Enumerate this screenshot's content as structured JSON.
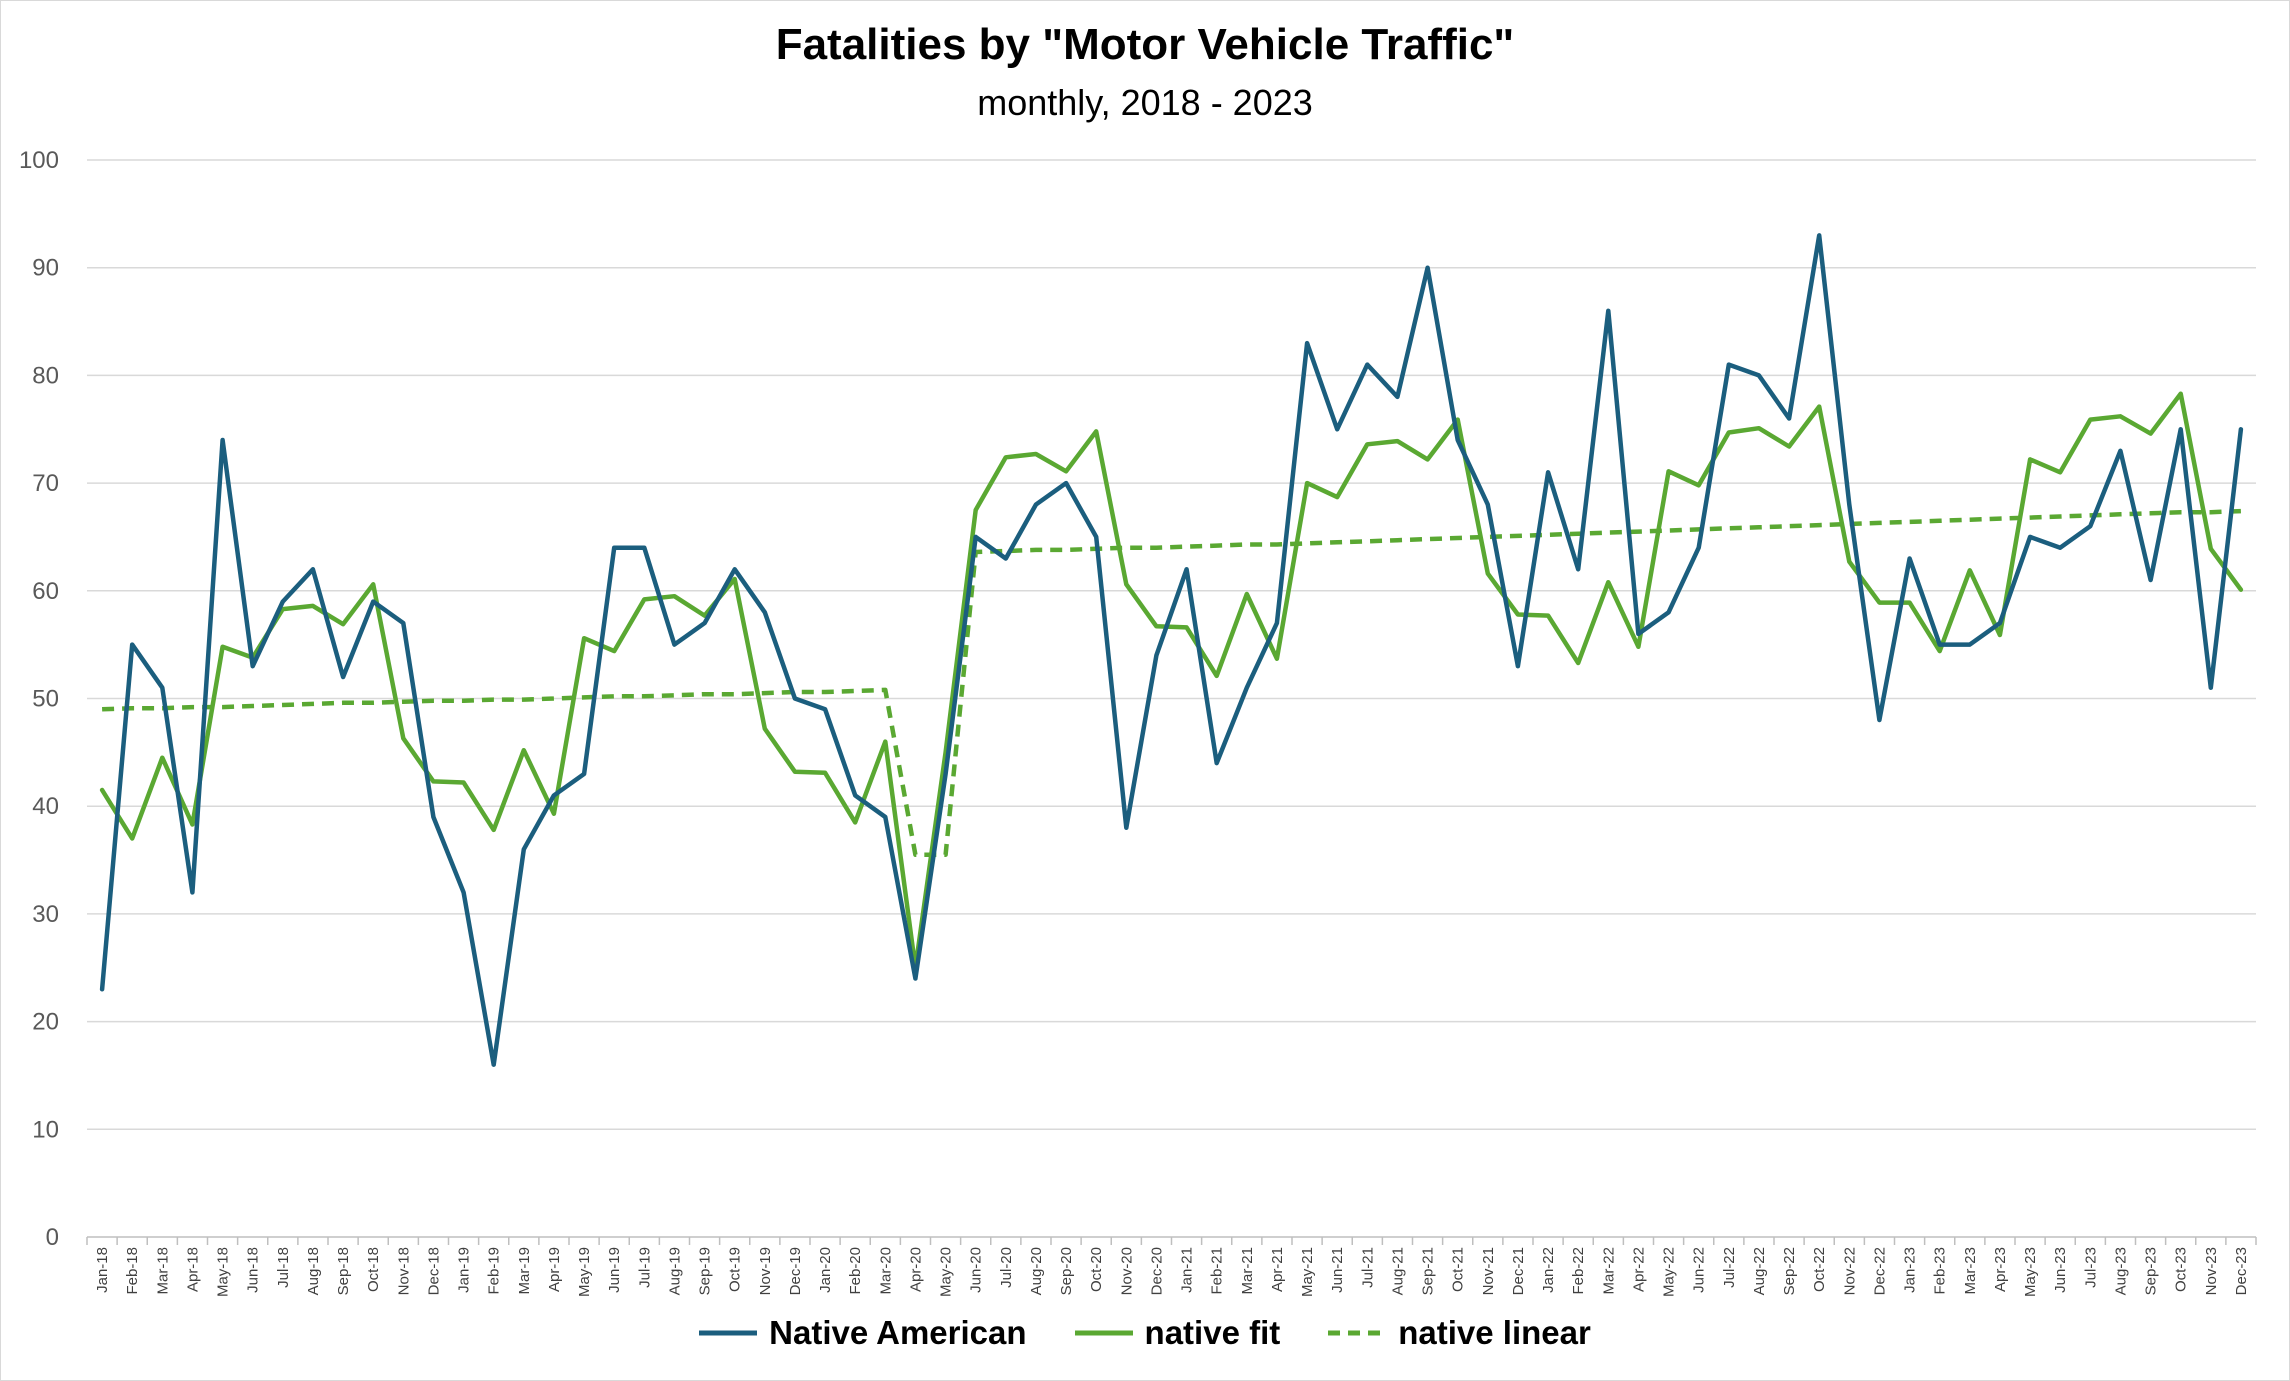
{
  "chart_data": {
    "type": "line",
    "title": "Fatalities by \"Motor Vehicle Traffic\"",
    "subtitle": "monthly, 2018 - 2023",
    "xlabel": "",
    "ylabel": "",
    "ylim": [
      0,
      100
    ],
    "yticks": [
      0,
      10,
      20,
      30,
      40,
      50,
      60,
      70,
      80,
      90,
      100
    ],
    "grid": true,
    "legend_position": "bottom",
    "categories": [
      "Jan-18",
      "Feb-18",
      "Mar-18",
      "Apr-18",
      "May-18",
      "Jun-18",
      "Jul-18",
      "Aug-18",
      "Sep-18",
      "Oct-18",
      "Nov-18",
      "Dec-18",
      "Jan-19",
      "Feb-19",
      "Mar-19",
      "Apr-19",
      "May-19",
      "Jun-19",
      "Jul-19",
      "Aug-19",
      "Sep-19",
      "Oct-19",
      "Nov-19",
      "Dec-19",
      "Jan-20",
      "Feb-20",
      "Mar-20",
      "Apr-20",
      "May-20",
      "Jun-20",
      "Jul-20",
      "Aug-20",
      "Sep-20",
      "Oct-20",
      "Nov-20",
      "Dec-20",
      "Jan-21",
      "Feb-21",
      "Mar-21",
      "Apr-21",
      "May-21",
      "Jun-21",
      "Jul-21",
      "Aug-21",
      "Sep-21",
      "Oct-21",
      "Nov-21",
      "Dec-21",
      "Jan-22",
      "Feb-22",
      "Mar-22",
      "Apr-22",
      "May-22",
      "Jun-22",
      "Jul-22",
      "Aug-22",
      "Sep-22",
      "Oct-22",
      "Nov-22",
      "Dec-22",
      "Jan-23",
      "Feb-23",
      "Mar-23",
      "Apr-23",
      "May-23",
      "Jun-23",
      "Jul-23",
      "Aug-23",
      "Sep-23",
      "Oct-23",
      "Nov-23",
      "Dec-23"
    ],
    "series": [
      {
        "name": "Native American",
        "color": "#1b5e7e",
        "dash": "solid",
        "values": [
          23,
          55,
          51,
          32,
          74,
          53,
          59,
          62,
          52,
          59,
          57,
          39,
          32,
          16,
          36,
          41,
          43,
          64,
          64,
          55,
          57,
          62,
          58,
          50,
          49,
          41,
          39,
          24,
          43,
          65,
          63,
          68,
          70,
          65,
          38,
          54,
          62,
          44,
          51,
          57,
          83,
          75,
          81,
          78,
          90,
          74,
          68,
          53,
          71,
          62,
          86,
          56,
          58,
          64,
          81,
          80,
          76,
          93,
          68,
          48,
          63,
          55,
          55,
          57,
          65,
          64,
          66,
          73,
          61,
          75,
          51,
          75
        ]
      },
      {
        "name": "native fit",
        "color": "#5aa832",
        "dash": "solid",
        "values": [
          41.5,
          37,
          44.5,
          38.3,
          54.8,
          53.8,
          58.3,
          58.6,
          56.9,
          60.6,
          46.3,
          42.3,
          42.2,
          37.8,
          45.2,
          39.3,
          55.6,
          54.4,
          59.2,
          59.5,
          57.7,
          61.1,
          47.2,
          43.2,
          43.1,
          38.5,
          46,
          25,
          45,
          67.5,
          72.4,
          72.7,
          71.1,
          74.8,
          60.6,
          56.7,
          56.6,
          52.1,
          59.7,
          53.7,
          70,
          68.7,
          73.6,
          73.9,
          72.2,
          75.9,
          61.6,
          57.8,
          57.7,
          53.3,
          60.8,
          54.8,
          71.1,
          69.8,
          74.7,
          75.1,
          73.4,
          77.1,
          62.7,
          58.9,
          58.9,
          54.4,
          61.9,
          55.9,
          72.2,
          71,
          75.9,
          76.2,
          74.6,
          78.3,
          63.9,
          60.1
        ]
      },
      {
        "name": "native linear",
        "color": "#5aa832",
        "dash": "dashed",
        "values": [
          49,
          49.1,
          49.1,
          49.2,
          49.2,
          49.3,
          49.4,
          49.5,
          49.6,
          49.6,
          49.7,
          49.8,
          49.8,
          49.9,
          49.9,
          50,
          50.1,
          50.2,
          50.2,
          50.3,
          50.4,
          50.4,
          50.5,
          50.6,
          50.6,
          50.7,
          50.8,
          35.5,
          35.5,
          63.6,
          63.7,
          63.8,
          63.8,
          63.9,
          64,
          64,
          64.1,
          64.2,
          64.3,
          64.3,
          64.4,
          64.5,
          64.6,
          64.7,
          64.8,
          64.9,
          65,
          65.1,
          65.2,
          65.3,
          65.4,
          65.5,
          65.6,
          65.7,
          65.8,
          65.9,
          66,
          66.1,
          66.2,
          66.3,
          66.4,
          66.5,
          66.6,
          66.7,
          66.8,
          66.9,
          67,
          67.1,
          67.2,
          67.3,
          67.3,
          67.4
        ]
      }
    ]
  }
}
